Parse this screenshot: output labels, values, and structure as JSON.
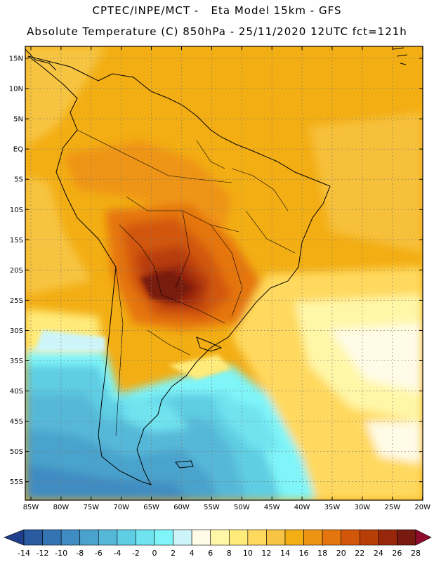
{
  "header": {
    "line1": "CPTEC/INPE/MCT -   Eta Model 15km - GFS",
    "line2": "Absolute Temperature (C) 850hPa - 25/11/2020 12UTC fct=121h"
  },
  "axes": {
    "lat_labels": [
      "15N",
      "10N",
      "5N",
      "EQ",
      "5S",
      "10S",
      "15S",
      "20S",
      "25S",
      "30S",
      "35S",
      "40S",
      "45S",
      "50S",
      "55S"
    ],
    "lon_labels": [
      "85W",
      "80W",
      "75W",
      "70W",
      "65W",
      "60W",
      "55W",
      "50W",
      "45W",
      "40W",
      "35W",
      "30W",
      "25W",
      "20W"
    ]
  },
  "colorbar": {
    "labels": [
      "-14",
      "-12",
      "-10",
      "-8",
      "-6",
      "-4",
      "-2",
      "0",
      "2",
      "4",
      "6",
      "8",
      "10",
      "12",
      "14",
      "16",
      "18",
      "20",
      "22",
      "24",
      "26",
      "28"
    ],
    "colors": [
      "#1f3f8c",
      "#2a5aa0",
      "#3574b3",
      "#3f8cc2",
      "#4aa3cc",
      "#56b8d8",
      "#5fcde3",
      "#6fe3ef",
      "#7ff5f9",
      "#cdf5f9",
      "#fffbe6",
      "#fff7a8",
      "#ffeb7a",
      "#ffd95e",
      "#f7c443",
      "#f3ae14",
      "#ee9414",
      "#e5750f",
      "#d2570b",
      "#b83e08",
      "#97270a",
      "#781a10",
      "#8f0c2c"
    ]
  },
  "colors": {
    "warm_base": "#f3ae14",
    "hot_core": "#781a10",
    "cold_south": "#56b8d8",
    "border": "#000000"
  }
}
